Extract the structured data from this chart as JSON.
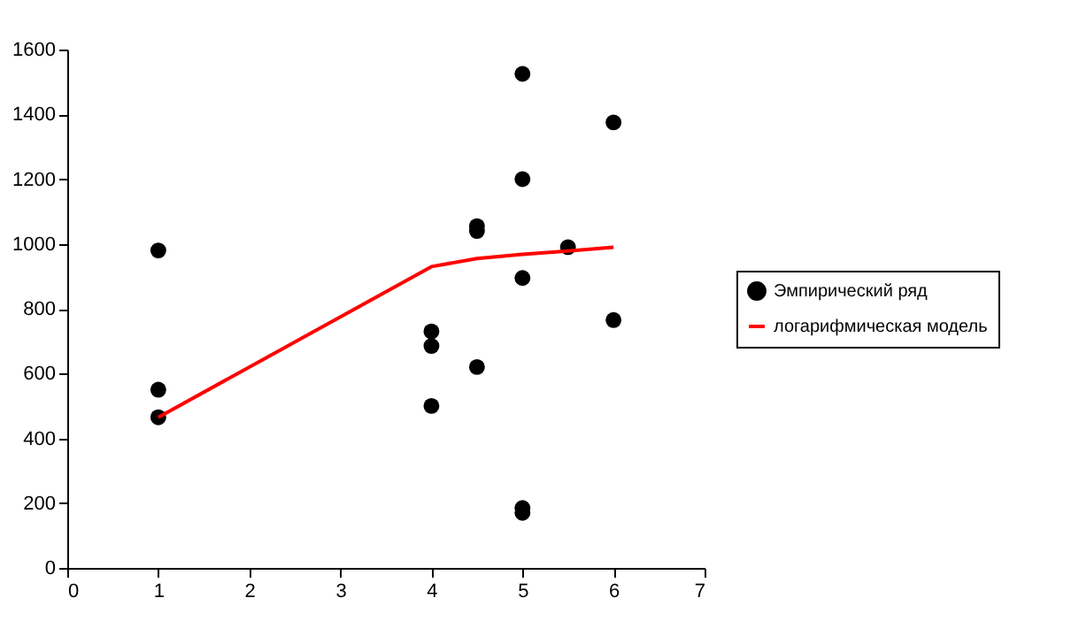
{
  "chart_data": {
    "type": "scatter",
    "xlim": [
      0,
      7
    ],
    "xticks": [
      0,
      1,
      2,
      3,
      4,
      5,
      6,
      7
    ],
    "ylim": [
      0,
      1600
    ],
    "yticks": [
      0,
      200,
      400,
      600,
      800,
      1000,
      1200,
      1400,
      1600
    ],
    "grid": false,
    "legend": "right",
    "series": [
      {
        "name": "Эмпирический ряд",
        "type": "scatter",
        "color": "#000000",
        "marker": "circle",
        "x": [
          1,
          1,
          1,
          4,
          4,
          4,
          4.5,
          4.5,
          4.5,
          5,
          5,
          5,
          5,
          5,
          5.5,
          6,
          6
        ],
        "values": [
          980,
          550,
          465,
          730,
          685,
          500,
          1055,
          1040,
          620,
          1525,
          1200,
          895,
          185,
          170,
          990,
          1375,
          765
        ]
      },
      {
        "name": "логарифмическая модель",
        "type": "line",
        "color": "#ff0000",
        "marker": "none",
        "line_style": "solid",
        "x": [
          1,
          4,
          4.5,
          5,
          5.5,
          6
        ],
        "values": [
          465,
          930,
          955,
          968,
          978,
          990
        ]
      }
    ]
  }
}
